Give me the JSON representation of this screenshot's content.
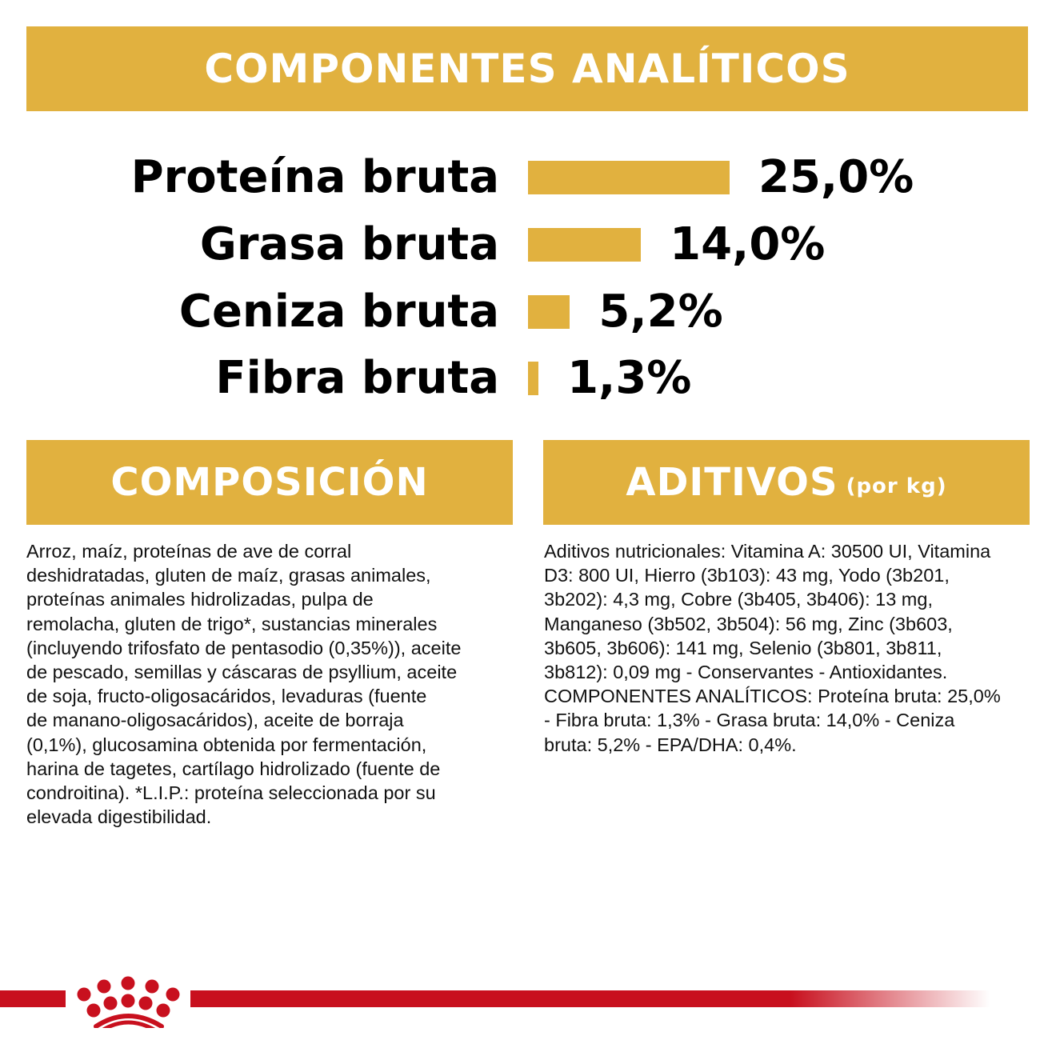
{
  "header": {
    "title": "COMPONENTES ANALÍTICOS"
  },
  "analytics": [
    {
      "label": "Proteína bruta",
      "value": "25,0%",
      "percent": 25.0
    },
    {
      "label": "Grasa bruta",
      "value": "14,0%",
      "percent": 14.0
    },
    {
      "label": "Ceniza bruta",
      "value": "5,2%",
      "percent": 5.2
    },
    {
      "label": "Fibra bruta",
      "value": "1,3%",
      "percent": 1.3
    }
  ],
  "composicion": {
    "title": "COMPOSICIÓN",
    "lines": [
      "Arroz, maíz, proteínas de ave de corral",
      "deshidratadas, gluten de maíz, grasas animales,",
      "proteínas animales hidrolizadas, pulpa de",
      "remolacha, gluten de trigo*, sustancias minerales",
      "(incluyendo trifosfato de pentasodio (0,35%)), aceite",
      "de pescado, semillas y cáscaras de psyllium, aceite",
      "de soja, fructo-oligosacáridos, levaduras (fuente",
      "de manano-oligosacáridos), aceite de borraja",
      "(0,1%), glucosamina obtenida por fermentación,",
      "harina de tagetes, cartílago hidrolizado (fuente de",
      "condroitina). *L.I.P.: proteína seleccionada por su",
      "elevada digestibilidad."
    ]
  },
  "aditivos": {
    "title": "ADITIVOS",
    "subtitle": "(por kg)",
    "lines": [
      "Aditivos nutricionales: Vitamina A: 30500 UI, Vitamina",
      "D3: 800 UI, Hierro (3b103): 43 mg, Yodo (3b201,",
      "3b202): 4,3 mg, Cobre (3b405, 3b406): 13 mg,",
      "Manganeso (3b502, 3b504): 56 mg, Zinc (3b603,",
      "3b605, 3b606): 141 mg, Selenio (3b801, 3b811,",
      "3b812): 0,09 mg - Conservantes - Antioxidantes.",
      "COMPONENTES ANALÍTICOS: Proteína bruta: 25,0%",
      "- Fibra bruta: 1,3% - Grasa bruta: 14,0% - Ceniza",
      "bruta: 5,2% - EPA/DHA: 0,4%."
    ]
  },
  "colors": {
    "gold": "#e1b13f",
    "red": "#c8101e"
  }
}
